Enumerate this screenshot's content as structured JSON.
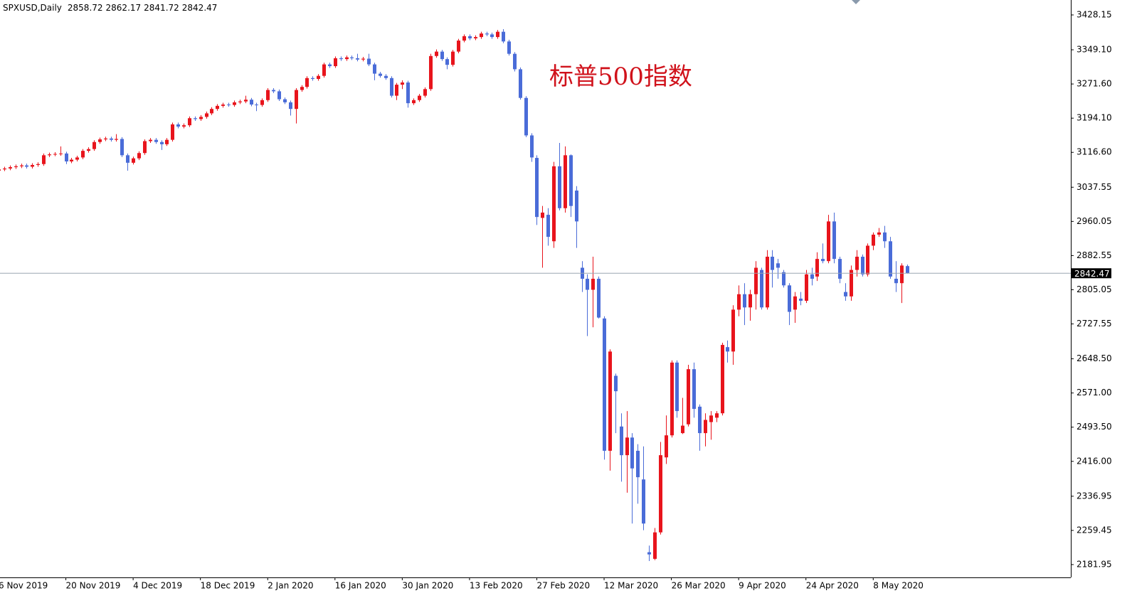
{
  "chart_data": {
    "type": "candlestick",
    "title": "SPXUSD,Daily",
    "annotation": "标普500指数",
    "up_color": "#e8141c",
    "down_color": "#4a6cd8",
    "grid": false,
    "ylim": [
      2152.9,
      3462.0
    ],
    "yticks": [
      3428.15,
      {
        "value": 3349.1,
        "label": "3349.10"
      },
      {
        "value": 3271.6,
        "label": "3271.60"
      },
      {
        "value": 3194.1,
        "label": "3194.10"
      },
      {
        "value": 3116.6,
        "label": "3116.60"
      },
      3037.55,
      2960.05,
      2882.55,
      2805.05,
      2727.55,
      {
        "value": 2648.5,
        "label": "2648.50"
      },
      {
        "value": 2571,
        "label": "2571.00"
      },
      {
        "value": 2493.5,
        "label": "2493.50"
      },
      {
        "value": 2416,
        "label": "2416.00"
      },
      2336.95,
      2259.45,
      2181.95
    ],
    "categories": [
      "6 Nov 2019",
      null,
      null,
      null,
      null,
      null,
      null,
      null,
      null,
      null,
      null,
      null,
      "20 Nov 2019",
      null,
      null,
      null,
      null,
      null,
      null,
      null,
      null,
      null,
      null,
      null,
      "4 Dec 2019",
      null,
      null,
      null,
      null,
      null,
      null,
      null,
      null,
      null,
      null,
      null,
      "18 Dec 2019",
      null,
      null,
      null,
      null,
      null,
      null,
      null,
      null,
      null,
      null,
      null,
      "2 Jan 2020",
      null,
      null,
      null,
      null,
      null,
      null,
      null,
      null,
      null,
      null,
      null,
      "16 Jan 2020",
      null,
      null,
      null,
      null,
      null,
      null,
      null,
      null,
      null,
      null,
      null,
      "30 Jan 2020",
      null,
      null,
      null,
      null,
      null,
      null,
      null,
      null,
      null,
      null,
      null,
      "13 Feb 2020",
      null,
      null,
      null,
      null,
      null,
      null,
      null,
      null,
      null,
      null,
      null,
      "27 Feb 2020",
      null,
      null,
      null,
      null,
      null,
      null,
      null,
      null,
      null,
      null,
      null,
      "12 Mar 2020",
      null,
      null,
      null,
      null,
      null,
      null,
      null,
      null,
      null,
      null,
      null,
      "26 Mar 2020",
      null,
      null,
      null,
      null,
      null,
      null,
      null,
      null,
      null,
      null,
      null,
      "9 Apr 2020",
      null,
      null,
      null,
      null,
      null,
      null,
      null,
      null,
      null,
      null,
      null,
      "24 Apr 2020",
      null,
      null,
      null,
      null,
      null,
      null,
      null,
      null,
      null,
      null,
      null,
      "8 May 2020",
      null,
      null,
      null,
      null,
      null,
      null
    ],
    "open": [
      3075,
      3078,
      3080,
      3083,
      3085,
      3087,
      3084,
      3088,
      3090,
      3110,
      3112,
      3113,
      3114,
      3096,
      3100,
      3105,
      3120,
      3124,
      3140,
      3146,
      3148,
      3145,
      3147,
      3110,
      3093,
      3103,
      3115,
      3142,
      3145,
      3140,
      3135,
      3145,
      3180,
      3175,
      3178,
      3194,
      3192,
      3197,
      3205,
      3215,
      3222,
      3225,
      3224,
      3230,
      3232,
      3236,
      3225,
      3224,
      3235,
      3258,
      3255,
      3237,
      3230,
      3215,
      3258,
      3265,
      3285,
      3283,
      3290,
      3316,
      3312,
      3330,
      3328,
      3332,
      3330,
      3327,
      3329,
      3316,
      3295,
      3290,
      3285,
      3245,
      3270,
      3275,
      3228,
      3235,
      3245,
      3260,
      3335,
      3345,
      3328,
      3315,
      3345,
      3370,
      3380,
      3375,
      3378,
      3386,
      3384,
      3378,
      3390,
      3368,
      3340,
      3305,
      3240,
      3155,
      3104,
      2968,
      2975,
      2915,
      3085,
      2990,
      3110,
      3030,
      2855,
      2830,
      2805,
      2830,
      2740,
      2440,
      2610,
      2495,
      2430,
      2470,
      2440,
      2375,
      2210,
      2195,
      2255,
      2425,
      2475,
      2640,
      2480,
      2500,
      2625,
      2540,
      2480,
      2505,
      2515,
      2525,
      2675,
      2665,
      2760,
      2795,
      2765,
      2795,
      2850,
      2765,
      2880,
      2865,
      2845,
      2815,
      2760,
      2785,
      2780,
      2840,
      2835,
      2875,
      2870,
      2960,
      2875,
      2800,
      2790,
      2850,
      2880,
      2840,
      2905,
      2930,
      2935,
      2915,
      2830,
      2820,
      2858.72
    ],
    "high": [
      3082,
      3084,
      3087,
      3089,
      3091,
      3091,
      3092,
      3094,
      3114,
      3116,
      3117,
      3130,
      3118,
      3104,
      3109,
      3124,
      3128,
      3144,
      3150,
      3152,
      3152,
      3158,
      3151,
      3114,
      3107,
      3119,
      3146,
      3149,
      3149,
      3144,
      3149,
      3184,
      3184,
      3182,
      3198,
      3198,
      3201,
      3209,
      3219,
      3226,
      3229,
      3229,
      3234,
      3236,
      3245,
      3240,
      3229,
      3239,
      3262,
      3262,
      3259,
      3241,
      3234,
      3262,
      3269,
      3289,
      3289,
      3294,
      3320,
      3320,
      3334,
      3334,
      3336,
      3336,
      3340,
      3333,
      3340,
      3320,
      3299,
      3294,
      3289,
      3274,
      3280,
      3279,
      3239,
      3249,
      3264,
      3340,
      3350,
      3349,
      3332,
      3349,
      3374,
      3384,
      3384,
      3382,
      3390,
      3390,
      3388,
      3394,
      3396,
      3372,
      3344,
      3309,
      3244,
      3160,
      3110,
      2995,
      2990,
      3095,
      3138,
      3130,
      3112,
      3040,
      2870,
      2840,
      2880,
      2835,
      2745,
      2670,
      2615,
      2525,
      2530,
      2480,
      2455,
      2450,
      2225,
      2265,
      2460,
      2520,
      2645,
      2645,
      2560,
      2635,
      2640,
      2545,
      2525,
      2530,
      2530,
      2685,
      2690,
      2770,
      2815,
      2820,
      2805,
      2870,
      2855,
      2895,
      2895,
      2875,
      2850,
      2820,
      2800,
      2800,
      2850,
      2855,
      2890,
      2910,
      2975,
      2980,
      2880,
      2820,
      2860,
      2895,
      2885,
      2910,
      2935,
      2945,
      2950,
      2925,
      2870,
      2865,
      2862.17
    ],
    "low": [
      3071,
      3074,
      3076,
      3079,
      3081,
      3080,
      3080,
      3084,
      3086,
      3106,
      3108,
      3109,
      3090,
      3092,
      3096,
      3101,
      3116,
      3120,
      3136,
      3142,
      3141,
      3141,
      3106,
      3075,
      3089,
      3099,
      3111,
      3138,
      3136,
      3122,
      3131,
      3141,
      3171,
      3171,
      3174,
      3188,
      3188,
      3193,
      3201,
      3211,
      3218,
      3220,
      3220,
      3226,
      3228,
      3221,
      3210,
      3220,
      3231,
      3251,
      3233,
      3226,
      3200,
      3182,
      3254,
      3261,
      3279,
      3279,
      3286,
      3308,
      3308,
      3324,
      3324,
      3326,
      3323,
      3323,
      3312,
      3280,
      3286,
      3281,
      3241,
      3235,
      3260,
      3218,
      3224,
      3231,
      3241,
      3256,
      3331,
      3324,
      3305,
      3311,
      3341,
      3366,
      3371,
      3371,
      3374,
      3380,
      3374,
      3374,
      3364,
      3336,
      3300,
      3236,
      3151,
      3095,
      2952,
      2855,
      2905,
      2900,
      2985,
      2980,
      2970,
      2900,
      2800,
      2700,
      2720,
      2740,
      2420,
      2395,
      2480,
      2370,
      2345,
      2275,
      2320,
      2260,
      2190,
      2192,
      2250,
      2410,
      2470,
      2515,
      2478,
      2495,
      2515,
      2440,
      2450,
      2465,
      2505,
      2520,
      2640,
      2635,
      2745,
      2725,
      2735,
      2760,
      2760,
      2760,
      2810,
      2830,
      2810,
      2725,
      2730,
      2770,
      2775,
      2815,
      2825,
      2865,
      2865,
      2865,
      2820,
      2780,
      2780,
      2835,
      2835,
      2835,
      2895,
      2925,
      2900,
      2830,
      2800,
      2775,
      2841.72
    ],
    "close": [
      3078,
      3080,
      3083,
      3085,
      3087,
      3084,
      3088,
      3090,
      3110,
      3112,
      3113,
      3114,
      3096,
      3100,
      3105,
      3120,
      3124,
      3140,
      3146,
      3148,
      3145,
      3147,
      3110,
      3093,
      3103,
      3115,
      3142,
      3145,
      3140,
      3135,
      3145,
      3180,
      3175,
      3178,
      3194,
      3192,
      3197,
      3205,
      3215,
      3222,
      3225,
      3224,
      3230,
      3232,
      3236,
      3225,
      3224,
      3235,
      3258,
      3255,
      3237,
      3230,
      3215,
      3258,
      3265,
      3285,
      3283,
      3290,
      3316,
      3312,
      3330,
      3328,
      3332,
      3330,
      3327,
      3329,
      3316,
      3295,
      3290,
      3285,
      3245,
      3270,
      3275,
      3228,
      3235,
      3245,
      3260,
      3335,
      3345,
      3328,
      3315,
      3345,
      3370,
      3380,
      3375,
      3378,
      3386,
      3384,
      3378,
      3390,
      3368,
      3340,
      3305,
      3240,
      3155,
      3105,
      2970,
      2980,
      2925,
      3085,
      2990,
      3110,
      2995,
      2960,
      2830,
      2805,
      2830,
      2742,
      2440,
      2665,
      2575,
      2430,
      2470,
      2400,
      2380,
      2275,
      2205,
      2255,
      2430,
      2475,
      2640,
      2530,
      2497,
      2625,
      2535,
      2480,
      2510,
      2520,
      2525,
      2680,
      2665,
      2760,
      2795,
      2765,
      2795,
      2855,
      2765,
      2880,
      2850,
      2855,
      2815,
      2755,
      2790,
      2780,
      2840,
      2830,
      2875,
      2870,
      2960,
      2875,
      2830,
      2790,
      2850,
      2880,
      2840,
      2905,
      2930,
      2935,
      2915,
      2835,
      2820,
      2860,
      2842.47
    ]
  }
}
